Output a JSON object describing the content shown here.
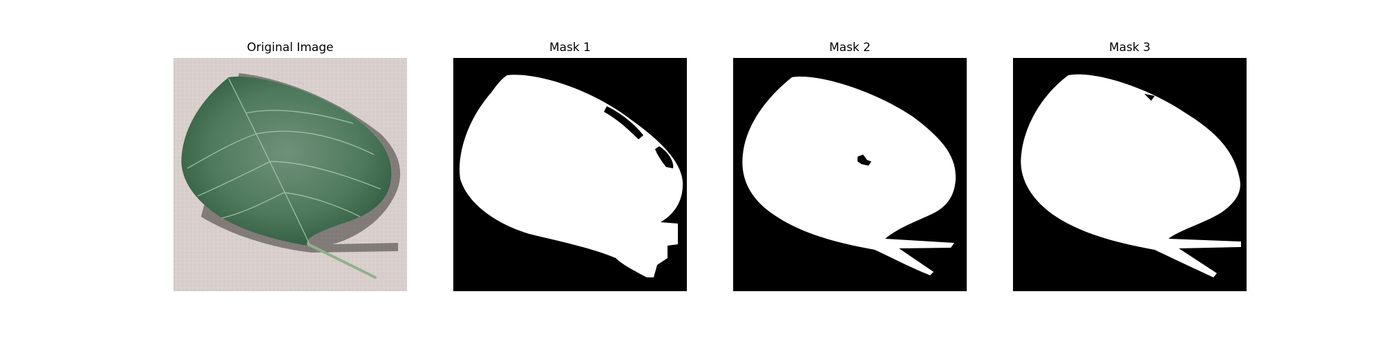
{
  "figure": {
    "panels": [
      {
        "title": "Original Image"
      },
      {
        "title": "Mask 1"
      },
      {
        "title": "Mask 2"
      },
      {
        "title": "Mask 3"
      }
    ]
  },
  "colors": {
    "background": "#ffffff",
    "mask_background": "#000000",
    "mask_foreground": "#ffffff",
    "leaf_green": "#4f7a5d",
    "leaf_dark": "#2f5a40",
    "sand": "#d8cfcc"
  }
}
